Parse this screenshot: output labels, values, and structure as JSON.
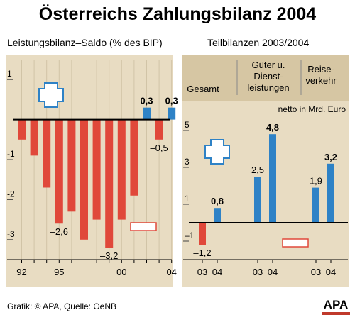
{
  "header": {
    "title": "Österreichs Zahlungsbilanz 2004",
    "subtitle_left": "Leistungsbilanz–Saldo (% des BIP)",
    "subtitle_right": "Teilbilanzen 2003/2004"
  },
  "footer": {
    "source": "Grafik: © APA, Quelle: OeNB",
    "logo": "APA"
  },
  "colors": {
    "negative": "#e0483a",
    "positive": "#2e82c6",
    "panel_bg": "#e8dcc2",
    "panel_header": "#d6c6a3",
    "grid": "#d1c4a7",
    "axis": "#000000"
  },
  "chart_data": [
    {
      "type": "bar",
      "title": "Leistungsbilanz–Saldo (% des BIP)",
      "x": [
        1992,
        1993,
        1994,
        1995,
        1996,
        1997,
        1998,
        1999,
        2000,
        2001,
        2002,
        2003,
        2004
      ],
      "values": [
        -0.5,
        -0.9,
        -1.7,
        -2.6,
        -2.3,
        -3.0,
        -2.5,
        -3.2,
        -2.5,
        -1.9,
        0.3,
        -0.5,
        0.3
      ],
      "ylim": [
        -3.5,
        1.5
      ],
      "yticks": [
        1,
        -1,
        -2,
        -3
      ],
      "ytick_labels": [
        "1",
        "-1",
        "-2",
        "-3"
      ],
      "xtick_labels": [
        "92",
        "95",
        "00",
        "04"
      ],
      "xtick_years": [
        1992,
        1995,
        2000,
        2004
      ],
      "data_labels": [
        {
          "year": 1995,
          "text": "–2,6"
        },
        {
          "year": 1999,
          "text": "–3,2"
        },
        {
          "year": 2002,
          "text": "0,3"
        },
        {
          "year": 2003,
          "text": "–0,5"
        },
        {
          "year": 2004,
          "text": "0,3"
        }
      ]
    },
    {
      "type": "bar",
      "title": "Teilbilanzen 2003/2004",
      "unit": "netto in Mrd. Euro",
      "categories": [
        "Gesamt",
        "Güter u. Dienst-leistungen",
        "Reise-verkehr"
      ],
      "category_lines": [
        [
          "Gesamt"
        ],
        [
          "Güter u.",
          "Dienst-",
          "leistungen"
        ],
        [
          "Reise-",
          "verkehr"
        ]
      ],
      "years": [
        "03",
        "04"
      ],
      "values": [
        [
          -1.2,
          0.8
        ],
        [
          2.5,
          4.8
        ],
        [
          1.9,
          3.2
        ]
      ],
      "value_labels": [
        [
          "–1,2",
          "0,8"
        ],
        [
          "2,5",
          "4,8"
        ],
        [
          "1,9",
          "3,2"
        ]
      ],
      "ylim": [
        -2,
        6
      ],
      "yticks": [
        5,
        3,
        1,
        -1
      ],
      "ytick_labels": [
        "5",
        "3",
        "1",
        "–1"
      ]
    }
  ]
}
